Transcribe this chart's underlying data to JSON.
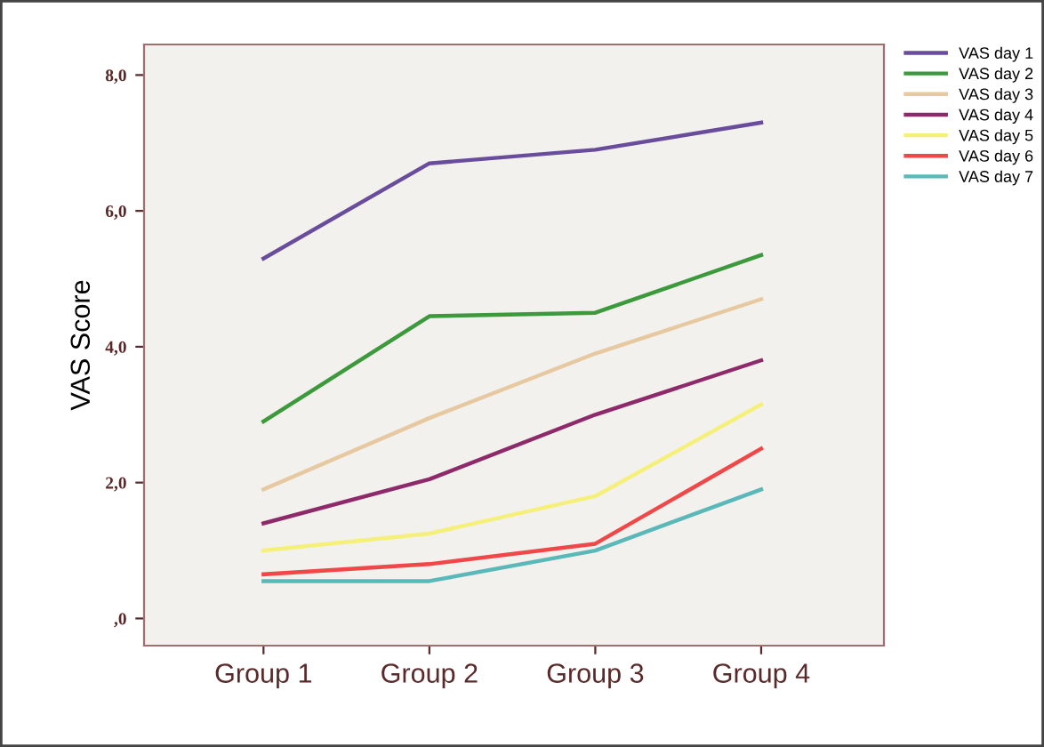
{
  "chart_data": {
    "type": "line",
    "ylabel": "VAS Score",
    "categories": [
      "Group 1",
      "Group 2",
      "Group 3",
      "Group 4"
    ],
    "series": [
      {
        "name": "VAS day 1",
        "color": "#6a4c9c",
        "values": [
          5.3,
          6.7,
          6.9,
          7.3
        ]
      },
      {
        "name": "VAS day 2",
        "color": "#3c9a3c",
        "values": [
          2.9,
          4.45,
          4.5,
          5.35
        ]
      },
      {
        "name": "VAS day 3",
        "color": "#e6c9a0",
        "values": [
          1.9,
          2.95,
          3.9,
          4.7
        ]
      },
      {
        "name": "VAS day 4",
        "color": "#8e2a6a",
        "values": [
          1.4,
          2.05,
          3.0,
          3.8
        ]
      },
      {
        "name": "VAS day 5",
        "color": "#f5f07a",
        "values": [
          1.0,
          1.25,
          1.8,
          3.15
        ]
      },
      {
        "name": "VAS day 6",
        "color": "#f04848",
        "values": [
          0.65,
          0.8,
          1.1,
          2.5
        ]
      },
      {
        "name": "VAS day 7",
        "color": "#5ab8b8",
        "values": [
          0.55,
          0.55,
          1.0,
          1.9
        ]
      }
    ],
    "ylim": [
      -0.4,
      8.45
    ],
    "yticks": [
      {
        "value": 0,
        "label": ",0"
      },
      {
        "value": 2,
        "label": "2,0"
      },
      {
        "value": 4,
        "label": "4,0"
      },
      {
        "value": 6,
        "label": "6,0"
      },
      {
        "value": 8,
        "label": "8,0"
      }
    ],
    "grid": false,
    "legend": "top right",
    "marker": "none",
    "line_style": "solid"
  }
}
